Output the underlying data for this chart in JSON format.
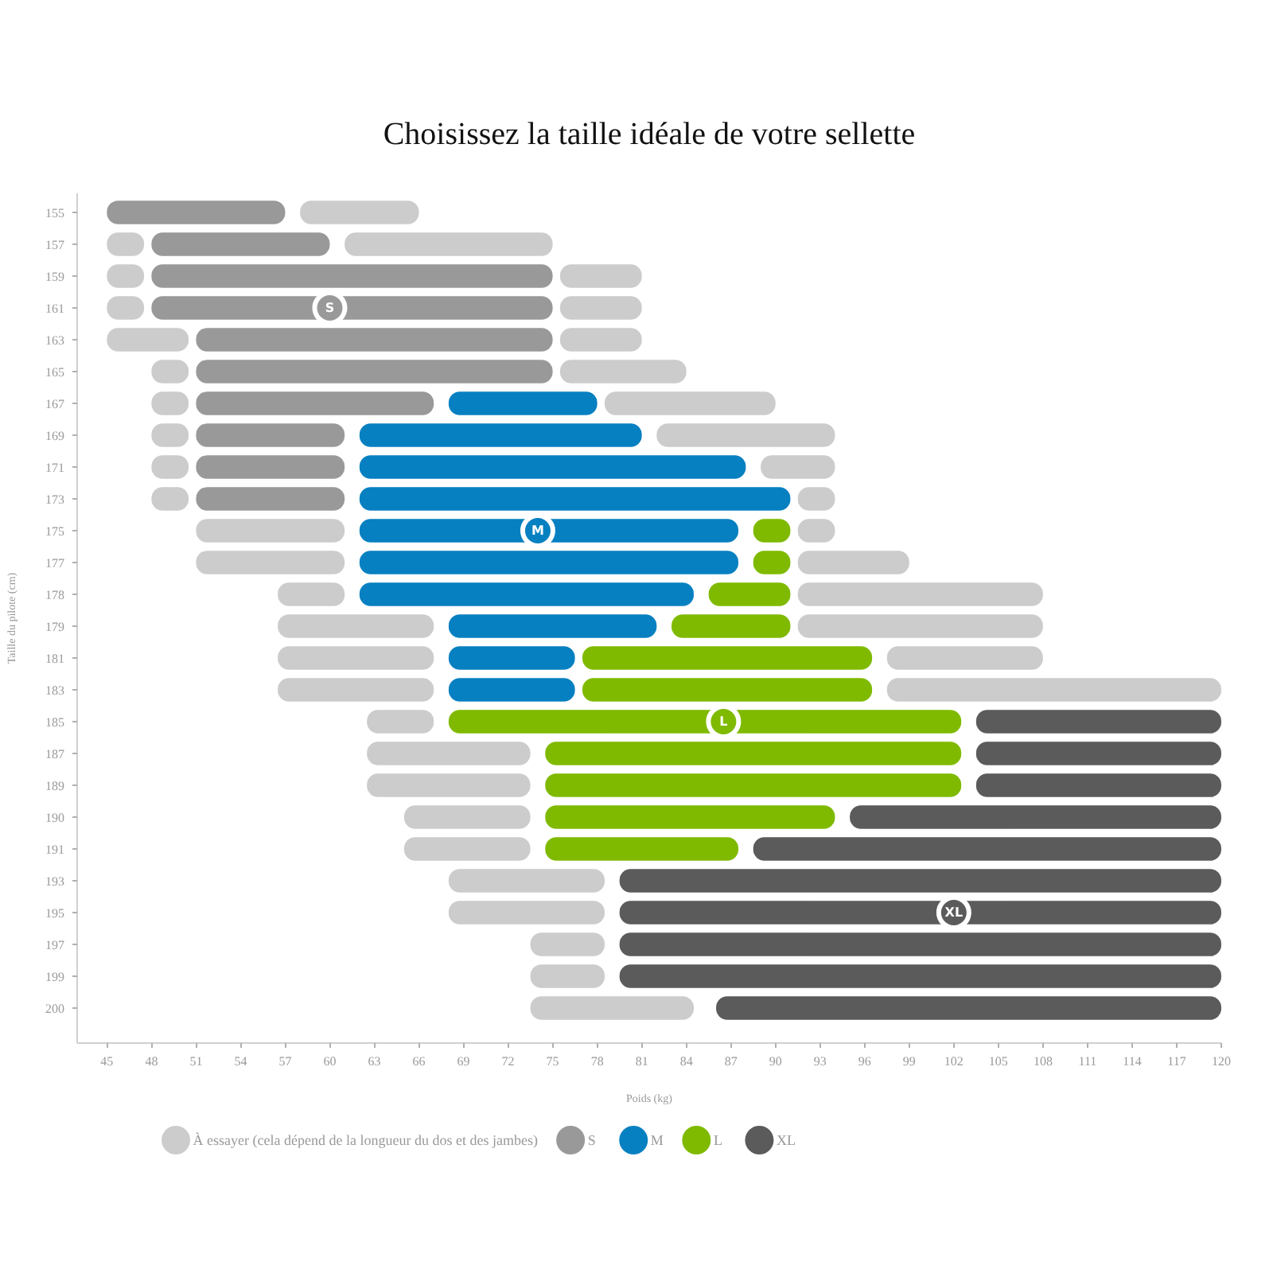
{
  "chart_data": {
    "type": "bar",
    "orientation": "horizontal",
    "title": "Choisissez la taille idéale de votre sellette",
    "xlabel": "Poids (kg)",
    "ylabel": "Taille du pilote (cm)",
    "categories": [
      "155",
      "157",
      "159",
      "161",
      "163",
      "165",
      "167",
      "169",
      "171",
      "173",
      "175",
      "177",
      "178",
      "179",
      "181",
      "183",
      "185",
      "187",
      "189",
      "190",
      "191",
      "193",
      "195",
      "197",
      "199",
      "200"
    ],
    "xlim": [
      43,
      120
    ],
    "xticks": [
      45,
      48,
      51,
      54,
      57,
      60,
      63,
      66,
      69,
      72,
      75,
      78,
      81,
      84,
      87,
      90,
      93,
      96,
      99,
      102,
      105,
      108,
      111,
      114,
      117,
      120
    ],
    "grid": false,
    "legend": "bottom left",
    "series": [
      {
        "name": "À essayer (cela dépend de la longueur du dos et des jambes)",
        "color": "#cccccc",
        "base": [
          null,
          45,
          45,
          45,
          45,
          48,
          48,
          48,
          48,
          48,
          51,
          51,
          56.5,
          56.5,
          56.5,
          56.5,
          62.5,
          62.5,
          62.5,
          65,
          65,
          68,
          68,
          73.5,
          73.5,
          73.5
        ],
        "values": [
          null,
          2.5,
          2.5,
          2.5,
          5.5,
          2.5,
          2.5,
          2.5,
          2.5,
          2.5,
          10,
          10,
          4.5,
          10.5,
          10.5,
          10.5,
          4.5,
          11,
          11,
          8.5,
          8.5,
          10.5,
          10.5,
          5,
          5,
          11
        ]
      },
      {
        "name": "S",
        "color": "#999999",
        "base": [
          45,
          48,
          48,
          48,
          51,
          51,
          51,
          51,
          51,
          51,
          null,
          null,
          null,
          null,
          null,
          null,
          null,
          null,
          null,
          null,
          null,
          null,
          null,
          null,
          null,
          null
        ],
        "values": [
          12,
          12,
          27,
          27,
          24,
          24,
          16,
          10,
          10,
          10,
          null,
          null,
          null,
          null,
          null,
          null,
          null,
          null,
          null,
          null,
          null,
          null,
          null,
          null,
          null,
          null
        ]
      },
      {
        "name": "M",
        "color": "#0780c1",
        "base": [
          null,
          null,
          null,
          null,
          null,
          null,
          68,
          62,
          62,
          62,
          62,
          62,
          62,
          68,
          68,
          68,
          null,
          null,
          null,
          null,
          null,
          null,
          null,
          null,
          null,
          null
        ],
        "values": [
          null,
          null,
          null,
          null,
          null,
          null,
          10,
          19,
          26,
          29,
          25.5,
          25.5,
          22.5,
          14,
          8.5,
          8.5,
          null,
          null,
          null,
          null,
          null,
          null,
          null,
          null,
          null,
          null
        ]
      },
      {
        "name": "L",
        "color": "#7fba00",
        "base": [
          null,
          null,
          null,
          null,
          null,
          null,
          null,
          null,
          null,
          null,
          88.5,
          88.5,
          85.5,
          83,
          77,
          77,
          68,
          74.5,
          74.5,
          74.5,
          74.5,
          null,
          null,
          null,
          null,
          null
        ],
        "values": [
          null,
          null,
          null,
          null,
          null,
          null,
          null,
          null,
          null,
          null,
          2.5,
          2.5,
          5.5,
          8,
          19.5,
          19.5,
          34.5,
          28,
          28,
          19.5,
          13,
          null,
          null,
          null,
          null,
          null
        ]
      },
      {
        "name": "XL",
        "color": "#5b5b5b",
        "base": [
          null,
          null,
          null,
          null,
          null,
          null,
          null,
          null,
          null,
          null,
          null,
          null,
          null,
          null,
          null,
          null,
          103.5,
          103.5,
          103.5,
          95,
          88.5,
          79.5,
          79.5,
          79.5,
          79.5,
          86
        ],
        "values": [
          null,
          null,
          null,
          null,
          null,
          null,
          null,
          null,
          null,
          null,
          null,
          null,
          null,
          null,
          null,
          null,
          16.5,
          16.5,
          16.5,
          25,
          31.5,
          40.5,
          40.5,
          40.5,
          40.5,
          34
        ]
      },
      {
        "color": "#cccccc",
        "base": [
          58,
          61,
          75.5,
          75.5,
          75.5,
          75.5,
          78.5,
          82,
          89,
          91.5,
          91.5,
          91.5,
          91.5,
          91.5,
          97.5,
          97.5,
          null,
          null,
          null,
          null,
          null,
          null,
          null,
          null,
          null,
          null
        ],
        "values": [
          8,
          14,
          5.5,
          5.5,
          5.5,
          8.5,
          11.5,
          12,
          5,
          2.5,
          2.5,
          7.5,
          16.5,
          16.5,
          10.5,
          22.5,
          null,
          null,
          null,
          null,
          null,
          null,
          null,
          null,
          null,
          null
        ]
      }
    ],
    "annotations": [
      {
        "text": "S",
        "x": 60,
        "y": "161"
      },
      {
        "text": "M",
        "x": 74,
        "y": "175"
      },
      {
        "text": "L",
        "x": 86.5,
        "y": "185"
      },
      {
        "text": "XL",
        "x": 102,
        "y": "195"
      }
    ]
  }
}
